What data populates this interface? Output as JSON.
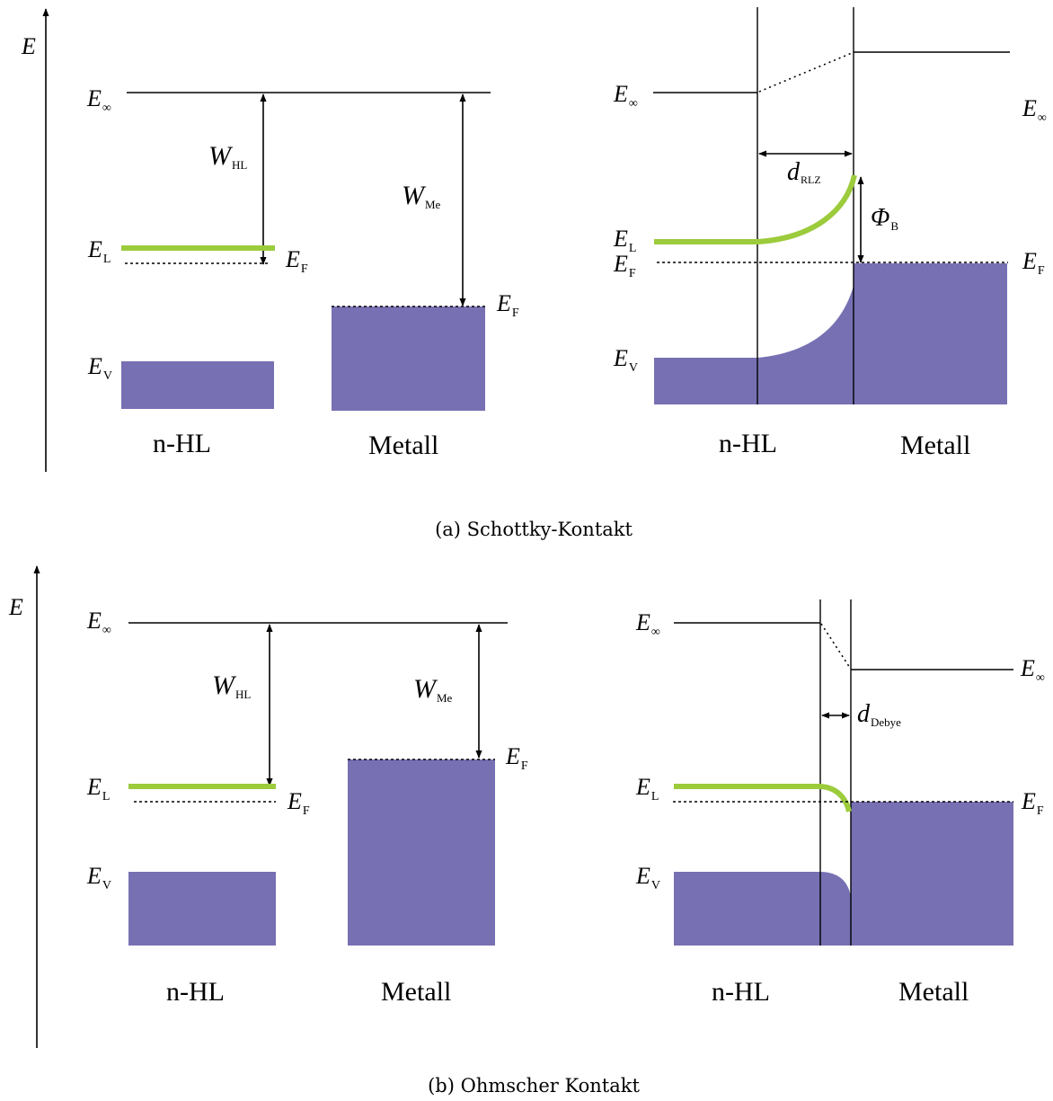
{
  "colors": {
    "band": "#7770b3",
    "conduction": "#9ccb3c",
    "line": "#000000"
  },
  "labels": {
    "E": "E",
    "E_inf": "E",
    "inf_sub": "∞",
    "E_L": "E",
    "L_sub": "L",
    "E_F": "E",
    "F_sub": "F",
    "E_V": "E",
    "V_sub": "V",
    "W": "W",
    "HL_sub": "HL",
    "Me_sub": "Me",
    "d": "d",
    "RLZ_sub": "RLZ",
    "Debye_sub": "Debye",
    "Phi": "Φ",
    "B_sub": "B",
    "n_HL": "n-HL",
    "metall": "Metall"
  },
  "captions": {
    "a": "(a) Schottky-Kontakt",
    "b": "(b) Ohmscher Kontakt"
  }
}
